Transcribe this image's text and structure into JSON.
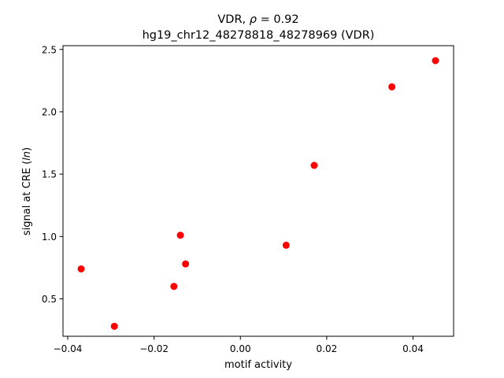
{
  "chart_data": {
    "type": "scatter",
    "title_line1_prefix": "VDR, ",
    "title_line1_symbol": "ρ",
    "title_line1_suffix": " = 0.92",
    "title_line2": "hg19_chr12_48278818_48278969 (VDR)",
    "xlabel": "motif activity",
    "ylabel_prefix": "signal at CRE (",
    "ylabel_italic": "ln",
    "ylabel_suffix": ")",
    "xlim": [
      -0.0411,
      0.0494
    ],
    "ylim": [
      0.2,
      2.53
    ],
    "xticks": [
      {
        "value": -0.04,
        "label": "−0.04"
      },
      {
        "value": -0.02,
        "label": "−0.02"
      },
      {
        "value": 0.0,
        "label": "0.00"
      },
      {
        "value": 0.02,
        "label": "0.02"
      },
      {
        "value": 0.04,
        "label": "0.04"
      }
    ],
    "yticks": [
      {
        "value": 0.5,
        "label": "0.5"
      },
      {
        "value": 1.0,
        "label": "1.0"
      },
      {
        "value": 1.5,
        "label": "1.5"
      },
      {
        "value": 2.0,
        "label": "2.0"
      },
      {
        "value": 2.5,
        "label": "2.5"
      }
    ],
    "marker_color": "#ff0000",
    "grid": false,
    "points": [
      {
        "x": -0.0369,
        "y": 0.74
      },
      {
        "x": -0.0292,
        "y": 0.28
      },
      {
        "x": -0.0154,
        "y": 0.6
      },
      {
        "x": -0.0139,
        "y": 1.01
      },
      {
        "x": -0.0127,
        "y": 0.78
      },
      {
        "x": 0.0106,
        "y": 0.93
      },
      {
        "x": 0.0171,
        "y": 1.57
      },
      {
        "x": 0.0351,
        "y": 2.2
      },
      {
        "x": 0.0452,
        "y": 2.41
      }
    ]
  }
}
